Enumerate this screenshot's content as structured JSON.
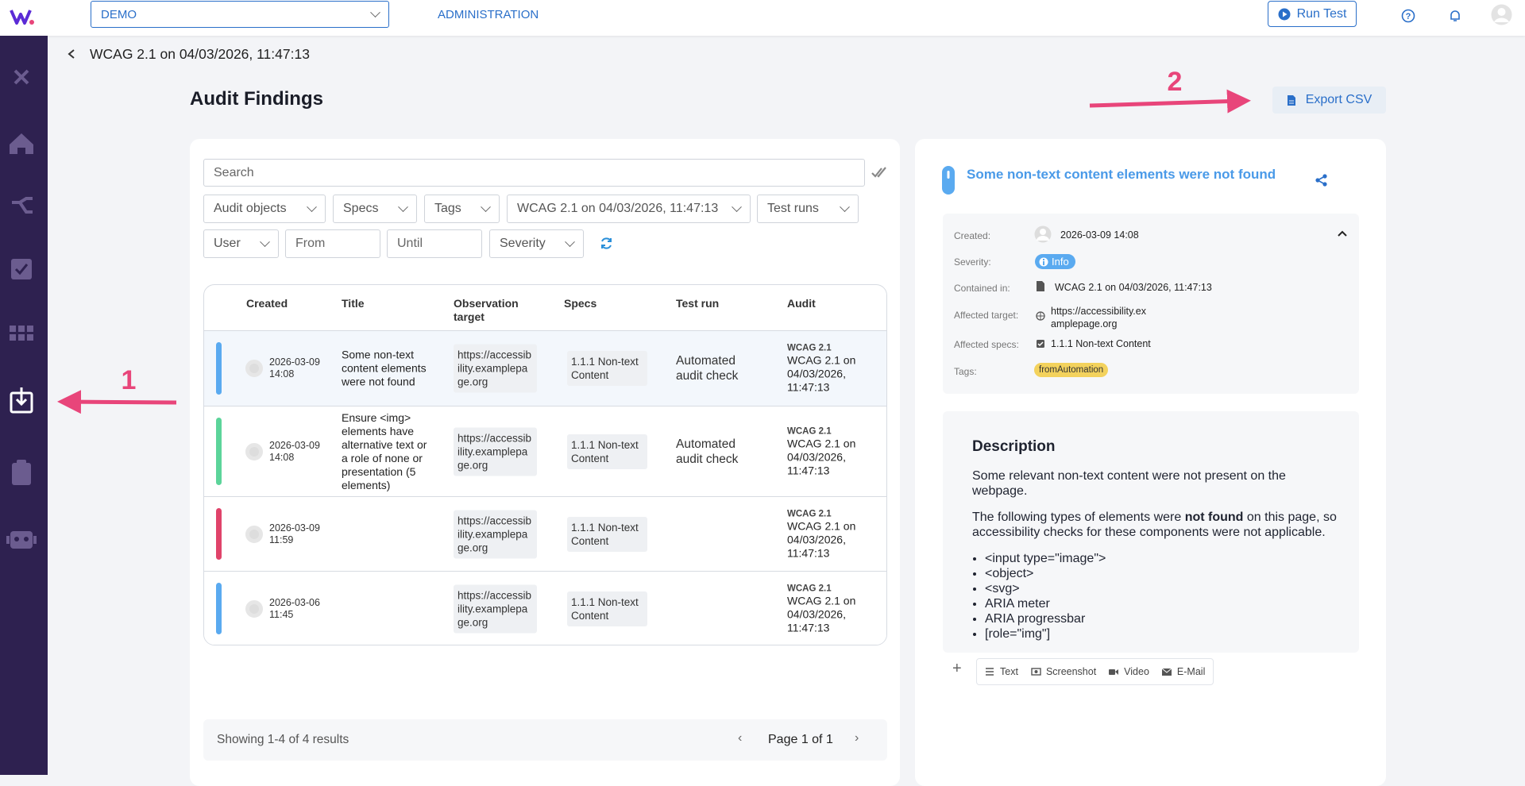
{
  "header": {
    "workspace": "DEMO",
    "nav": "ADMINISTRATION",
    "run_test": "Run Test"
  },
  "breadcrumb": "WCAG 2.1 on 04/03/2026, 11:47:13",
  "page_title": "Audit Findings",
  "export_button": "Export CSV",
  "annotations": [
    "1",
    "2"
  ],
  "search_placeholder": "Search",
  "filters": {
    "audit_objects": "Audit objects",
    "specs": "Specs",
    "tags": "Tags",
    "audit": "WCAG 2.1 on 04/03/2026, 11:47:13",
    "test_runs": "Test runs",
    "user": "User",
    "from": "From",
    "until": "Until",
    "severity": "Severity"
  },
  "table": {
    "columns": [
      "Created",
      "Title",
      "Observation target",
      "Specs",
      "Test run",
      "Audit"
    ],
    "rows": [
      {
        "created": "2026-03-09 14:08",
        "title": "Some non-text content elements were not found",
        "target": "https://accessibility.examplepage.org",
        "specs": "1.1.1 Non-text Content",
        "test_run": "Automated audit check",
        "audit_short": "WCAG 2.1",
        "audit": "WCAG 2.1 on 04/03/2026, 11:47:13",
        "color": "#5aaaf0"
      },
      {
        "created": "2026-03-09 14:08",
        "title": "Ensure <img> elements have alternative text or a role of none or presentation (5 elements)",
        "target": "https://accessibility.examplepage.org",
        "specs": "1.1.1 Non-text Content",
        "test_run": "Automated audit check",
        "audit_short": "WCAG 2.1",
        "audit": "WCAG 2.1 on 04/03/2026, 11:47:13",
        "color": "#5cd49a"
      },
      {
        "created": "2026-03-09 11:59",
        "title": null,
        "target": "https://accessibility.examplepage.org",
        "specs": "1.1.1 Non-text Content",
        "test_run": null,
        "audit_short": "WCAG 2.1",
        "audit": "WCAG 2.1 on 04/03/2026, 11:47:13",
        "color": "#e0436a"
      },
      {
        "created": "2026-03-06 11:45",
        "title": null,
        "target": "https://accessibility.examplepage.org",
        "specs": "1.1.1 Non-text Content",
        "test_run": null,
        "audit_short": "WCAG 2.1",
        "audit": "WCAG 2.1 on 04/03/2026, 11:47:13",
        "color": "#5aaaf0"
      }
    ]
  },
  "pagination": {
    "summary": "Showing 1-4 of 4 results",
    "page": "Page 1 of 1"
  },
  "detail": {
    "title": "Some non-text content elements were not found",
    "fields": {
      "created_label": "Created:",
      "created": "2026-03-09 14:08",
      "severity_label": "Severity:",
      "severity": "Info",
      "contained_label": "Contained in:",
      "contained": "WCAG 2.1 on 04/03/2026, 11:47:13",
      "target_label": "Affected target:",
      "target": "https://accessibility.examplepage.org",
      "specs_label": "Affected specs:",
      "specs": "1.1.1 Non-text Content",
      "tags_label": "Tags:",
      "tag": "fromAutomation"
    },
    "description": {
      "heading": "Description",
      "p1": "Some relevant non-text content were not present on the webpage.",
      "p2_before": "The following types of elements were ",
      "p2_bold": "not found",
      "p2_after": " on this page, so accessibility checks for these components were not applicable.",
      "items": [
        "<input type=\"image\">",
        "<object>",
        "<svg>",
        "ARIA meter",
        "ARIA progressbar",
        "[role=\"img\"]"
      ]
    },
    "toolbar": [
      "Text",
      "Screenshot",
      "Video",
      "E-Mail"
    ]
  }
}
